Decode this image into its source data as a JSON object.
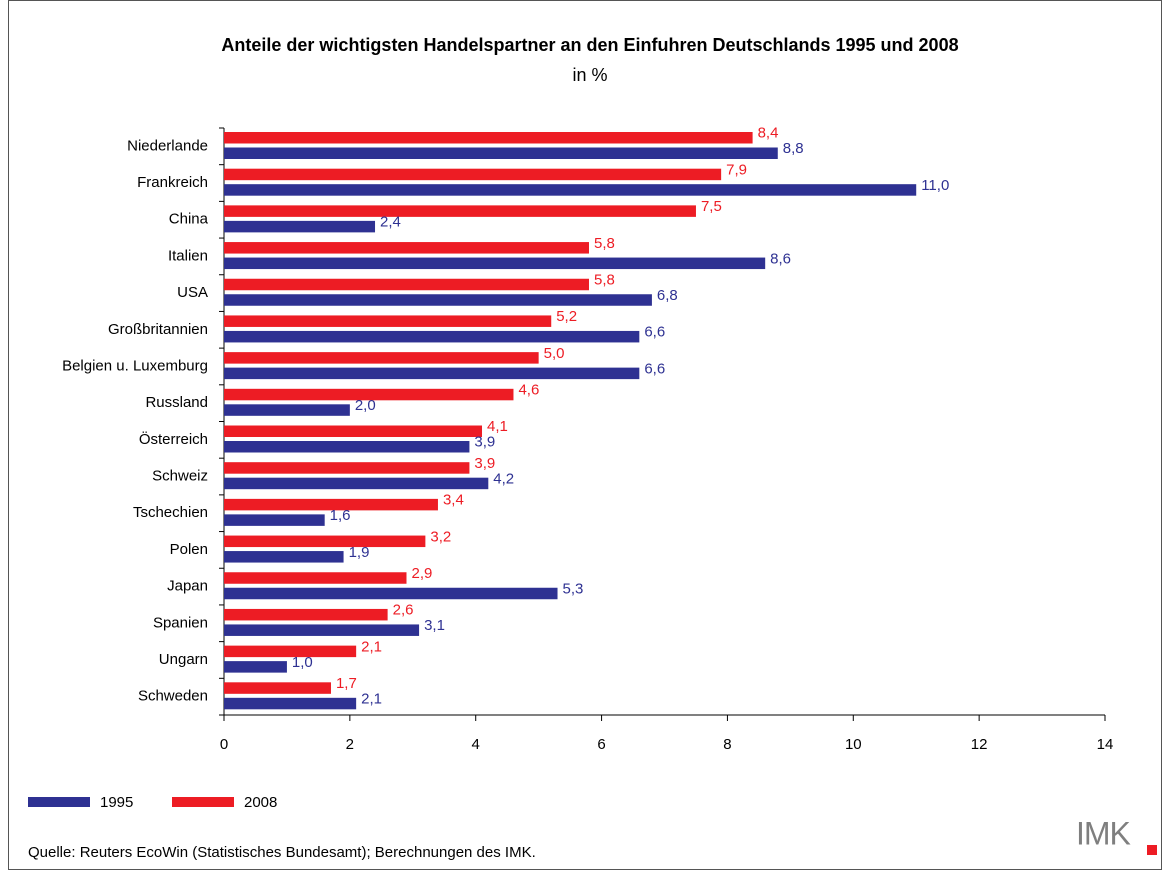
{
  "chart_data": {
    "type": "hbar",
    "title": "Anteile der wichtigsten Handelspartner an den Einfuhren Deutschlands 1995 und 2008",
    "subtitle": "in %",
    "categories": [
      "Niederlande",
      "Frankreich",
      "China",
      "Italien",
      "USA",
      "Großbritannien",
      "Belgien u. Luxemburg",
      "Russland",
      "Österreich",
      "Schweiz",
      "Tschechien",
      "Polen",
      "Japan",
      "Spanien",
      "Ungarn",
      "Schweden"
    ],
    "series": [
      {
        "name": "1995",
        "color": "#2e3192",
        "values": [
          8.8,
          11.0,
          2.4,
          8.6,
          6.8,
          6.6,
          6.6,
          2.0,
          3.9,
          4.2,
          1.6,
          1.9,
          5.3,
          3.1,
          1.0,
          2.1
        ],
        "value_labels": [
          "8,8",
          "11,0",
          "2,4",
          "8,6",
          "6,8",
          "6,6",
          "6,6",
          "2,0",
          "3,9",
          "4,2",
          "1,6",
          "1,9",
          "5,3",
          "3,1",
          "1,0",
          "2,1"
        ]
      },
      {
        "name": "2008",
        "color": "#ed1c24",
        "values": [
          8.4,
          7.9,
          7.5,
          5.8,
          5.8,
          5.2,
          5.0,
          4.6,
          4.1,
          3.9,
          3.4,
          3.2,
          2.9,
          2.6,
          2.1,
          1.7
        ],
        "value_labels": [
          "8,4",
          "7,9",
          "7,5",
          "5,8",
          "5,8",
          "5,2",
          "5,0",
          "4,6",
          "4,1",
          "3,9",
          "3,4",
          "3,2",
          "2,9",
          "2,6",
          "2,1",
          "1,7"
        ]
      }
    ],
    "xlim": [
      0,
      14
    ],
    "xticks": [
      0,
      2,
      4,
      6,
      8,
      10,
      12,
      14
    ],
    "source": "Quelle: Reuters EcoWin (Statistisches Bundesamt); Berechnungen des IMK.",
    "logo": "IMK"
  }
}
